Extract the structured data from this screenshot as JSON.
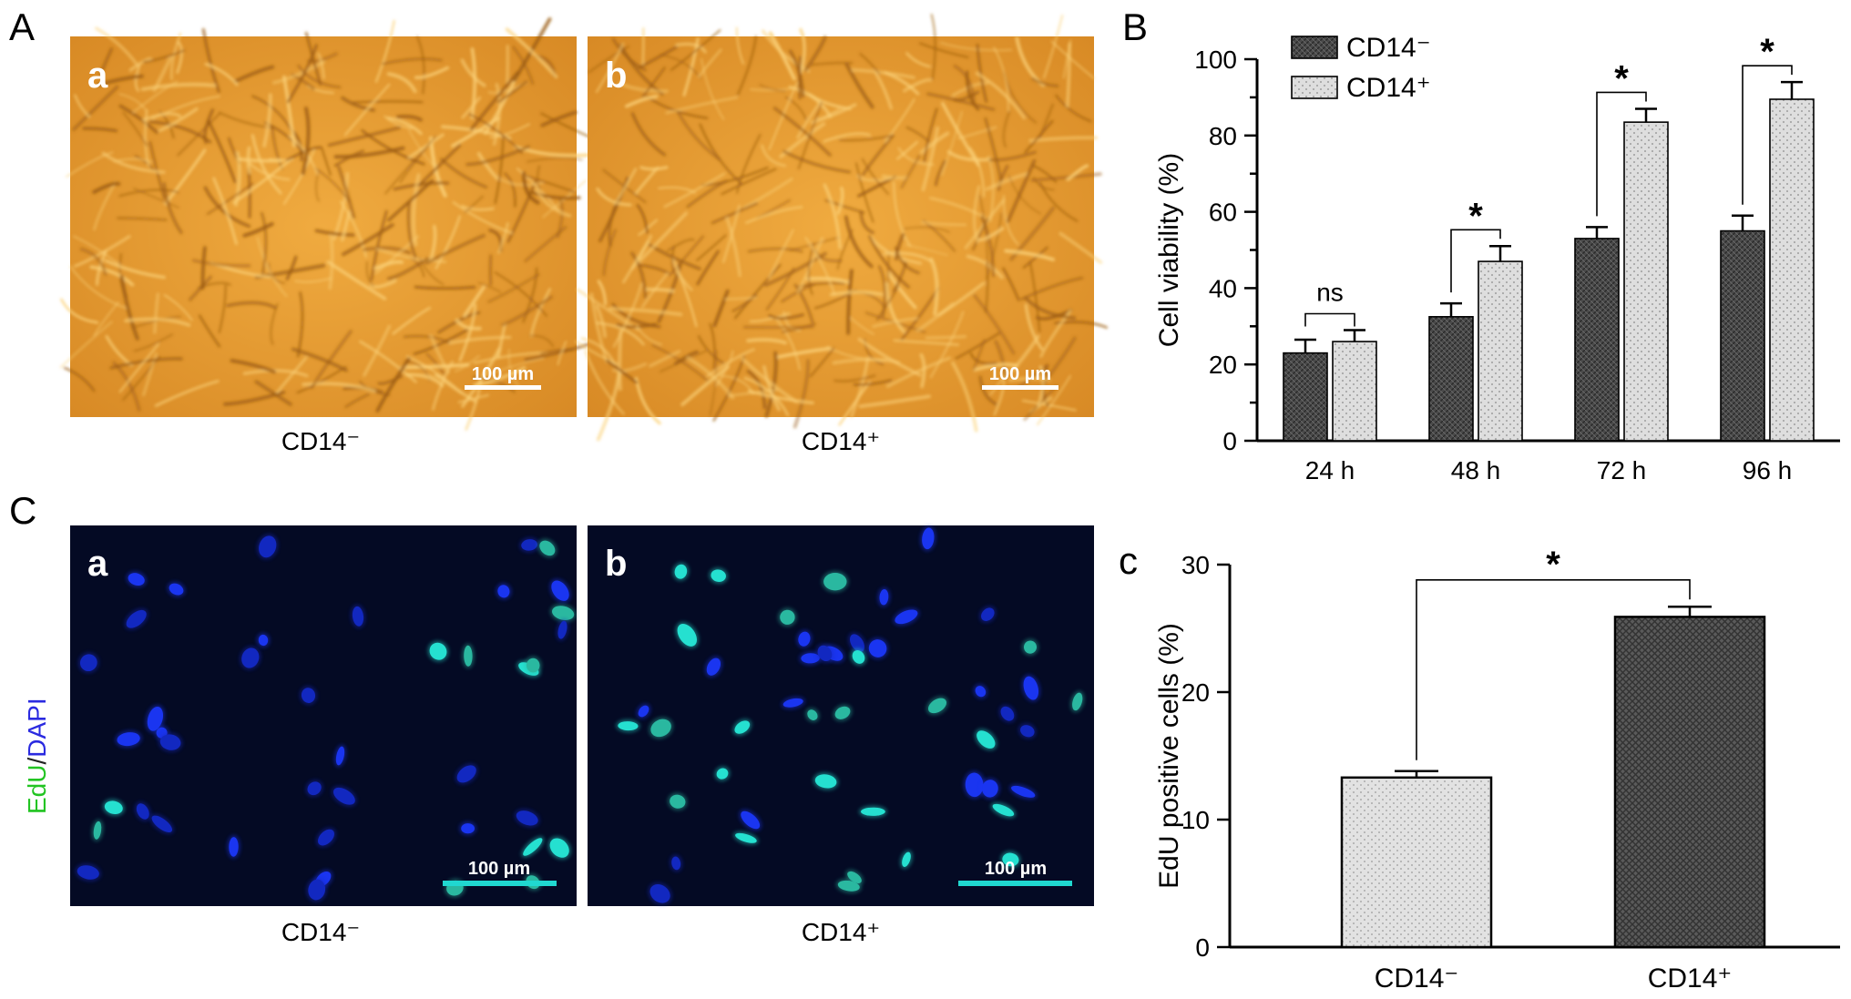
{
  "panel_labels": {
    "A": "A",
    "B": "B",
    "C": "C",
    "c": "c"
  },
  "micro_a": {
    "label": "a",
    "scale": "100 µm",
    "caption": "CD14⁻"
  },
  "micro_b": {
    "label": "b",
    "scale": "100 µm",
    "caption": "CD14⁺"
  },
  "fluor_a": {
    "label": "a",
    "scale": "100 µm",
    "caption": "CD14⁻"
  },
  "fluor_b": {
    "label": "b",
    "scale": "100 µm",
    "caption": "CD14⁺"
  },
  "stain_label": {
    "edu": "EdU",
    "slash": "/",
    "dapi": "DAPI"
  },
  "colors": {
    "brightfield": "#e49e35",
    "fluor_bg": "#040a24",
    "dapi_nucleus": "#1530e0",
    "edu_nucleus": "#20d8c8",
    "scale_bar_fluor": "#20d8d0",
    "dark_bar": "#4a4a4a",
    "light_bar": "#dcdcdc"
  },
  "chart_data": [
    {
      "type": "bar",
      "panel": "B",
      "categories": [
        "24 h",
        "48 h",
        "72 h",
        "96 h"
      ],
      "series": [
        {
          "name": "CD14⁻",
          "values": [
            23,
            32.5,
            53,
            55
          ],
          "errors": [
            3.5,
            3.5,
            3,
            4
          ]
        },
        {
          "name": "CD14⁺",
          "values": [
            26,
            47,
            83.5,
            89.5
          ],
          "errors": [
            3,
            4,
            3.5,
            4.5
          ]
        }
      ],
      "significance": [
        "ns",
        "*",
        "*",
        "*"
      ],
      "ylabel": "Cell viability (%)",
      "ylim": [
        0,
        100
      ],
      "yticks": [
        0,
        20,
        40,
        60,
        80,
        100
      ],
      "legend_position": "top-left"
    },
    {
      "type": "bar",
      "panel": "c",
      "categories": [
        "CD14⁻",
        "CD14⁺"
      ],
      "values": [
        13.3,
        25.9
      ],
      "errors": [
        0.5,
        0.8
      ],
      "significance": "*",
      "ylabel": "EdU positive cells (%)",
      "ylim": [
        0,
        30
      ],
      "yticks": [
        0,
        10,
        20,
        30
      ]
    }
  ]
}
